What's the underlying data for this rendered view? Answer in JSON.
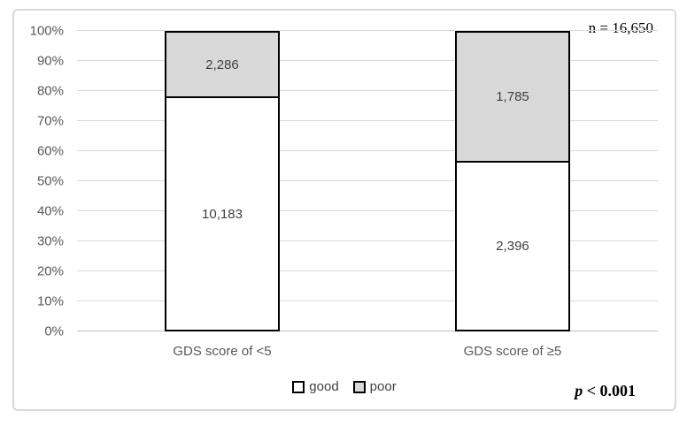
{
  "chart_data": {
    "type": "bar",
    "subtype": "stacked-100-percent",
    "categories": [
      "GDS score of <5",
      "GDS score of ≥5"
    ],
    "series": [
      {
        "name": "good",
        "color": "#ffffff",
        "values": [
          10183,
          2396
        ],
        "labels": [
          "10,183",
          "2,396"
        ]
      },
      {
        "name": "poor",
        "color": "#d9d9d9",
        "values": [
          2286,
          1785
        ],
        "labels": [
          "2,286",
          "1,785"
        ]
      }
    ],
    "y_ticks": [
      "0%",
      "10%",
      "20%",
      "30%",
      "40%",
      "50%",
      "60%",
      "70%",
      "80%",
      "90%",
      "100%"
    ],
    "ylim": [
      0,
      100
    ],
    "grid": true,
    "legend_position": "bottom"
  },
  "legend": {
    "items": [
      {
        "label": "good",
        "color": "#ffffff"
      },
      {
        "label": "poor",
        "color": "#d9d9d9"
      }
    ]
  },
  "annotations": {
    "sample_size": "n = 16,650",
    "p_prefix": "p",
    "p_rest": " < 0.001"
  },
  "colors": {
    "bar_fill_good": "#ffffff",
    "bar_fill_poor": "#d9d9d9",
    "bar_border": "#000000",
    "gridline": "#d9d9d9",
    "frame_border": "#d9d9d9",
    "axis_text": "#595959",
    "data_label_text": "#404040"
  }
}
